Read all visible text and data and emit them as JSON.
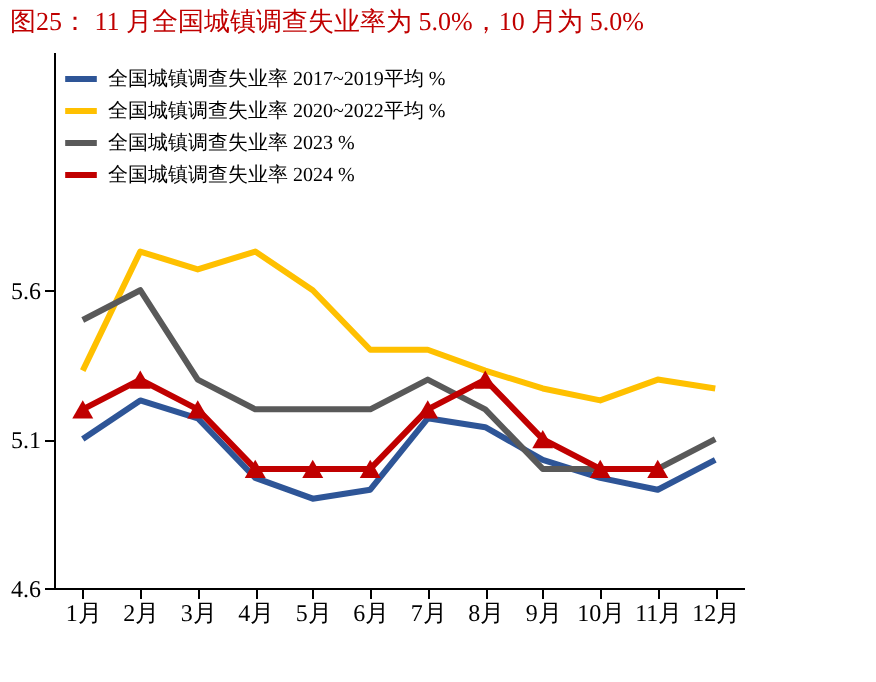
{
  "chart_data": {
    "type": "line",
    "title": "图25：  11 月全国城镇调查失业率为 5.0%，10 月为 5.0%",
    "categories": [
      "1月",
      "2月",
      "3月",
      "4月",
      "5月",
      "6月",
      "7月",
      "8月",
      "9月",
      "10月",
      "11月",
      "12月"
    ],
    "series": [
      {
        "name": "全国城镇调查失业率 2017~2019平均 %",
        "color": "#2e5597",
        "values": [
          5.1,
          5.23,
          5.17,
          4.97,
          4.9,
          4.93,
          5.17,
          5.14,
          5.03,
          4.97,
          4.93,
          5.03
        ]
      },
      {
        "name": "全国城镇调查失业率 2020~2022平均 %",
        "color": "#ffc000",
        "values": [
          5.33,
          5.73,
          5.67,
          5.73,
          5.6,
          5.4,
          5.4,
          5.33,
          5.27,
          5.23,
          5.3,
          5.27
        ]
      },
      {
        "name": "全国城镇调查失业率 2023 %",
        "color": "#595959",
        "values": [
          5.5,
          5.6,
          5.3,
          5.2,
          5.2,
          5.2,
          5.3,
          5.2,
          5.0,
          5.0,
          5.0,
          5.1
        ]
      },
      {
        "name": "全国城镇调查失业率 2024 %",
        "color": "#c00000",
        "marker": "triangle",
        "values": [
          5.2,
          5.3,
          5.2,
          5.0,
          5.0,
          5.0,
          5.2,
          5.3,
          5.1,
          5.0,
          5.0,
          null
        ]
      }
    ],
    "ylim": [
      4.6,
      6.4
    ],
    "yticks": [
      4.6,
      5.1,
      5.6
    ],
    "grid": false,
    "legend": "top left"
  }
}
